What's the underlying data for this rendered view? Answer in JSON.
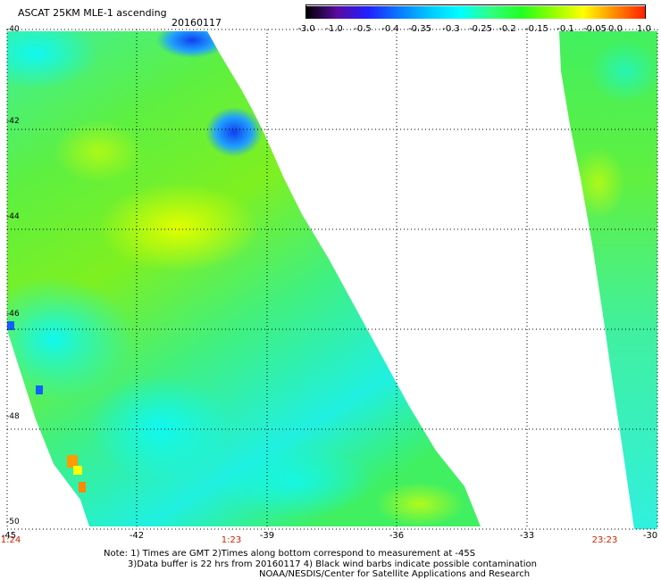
{
  "title": "ASCAT 25KM MLE-1 ascending",
  "date": "20160117",
  "colorbar": {
    "labels": [
      "-3.0",
      "-1.0",
      "-0.5",
      "-0.4",
      "-0.35",
      "-0.3",
      "-0.25",
      "-0.2",
      "-0.15",
      "-0.1",
      "-0.05",
      "0.0",
      "1.0"
    ],
    "colors": [
      "#000000",
      "#5a0aa0",
      "#2020ff",
      "#0a78ff",
      "#00c8ff",
      "#00ffff",
      "#30ff80",
      "#20ff20",
      "#90ff00",
      "#ffff00",
      "#ff8c00",
      "#ff2000"
    ]
  },
  "lat_labels": [
    "-40",
    "-42",
    "-44",
    "-46",
    "-48",
    "-50"
  ],
  "lon_labels": [
    "-45",
    "-42",
    "-39",
    "-36",
    "-33",
    "-30"
  ],
  "time_labels": [
    "1:24",
    "1:23",
    "23:23"
  ],
  "notes": {
    "line1": "Note: 1) Times are GMT 2)Times along bottom correspond to measurement at -45S",
    "line2": "3)Data buffer is 22 hrs from 20160117 4) Black wind barbs indicate possible contamination",
    "line3": "NOAA/NESDIS/Center for Satellite Applications and Research"
  }
}
